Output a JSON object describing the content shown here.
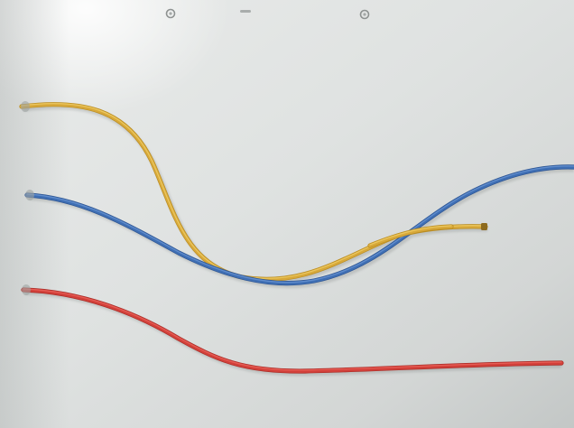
{
  "scene": {
    "subject": "three-wires-on-white-panel",
    "colors": {
      "panel_light": "#e6e8e7",
      "panel_mid": "#d4d7d6",
      "panel_dark": "#b8bcbb",
      "yellow_wire": "#d8a93a",
      "yellow_wire_highlight": "#f0cf6a",
      "blue_wire": "#3f6fb4",
      "blue_wire_highlight": "#6f98d6",
      "red_wire": "#d2403a",
      "red_wire_highlight": "#ef6b63",
      "screw": "#8e9291"
    },
    "wires": [
      {
        "name": "yellow-wire",
        "color_key": "yellow_wire"
      },
      {
        "name": "blue-wire",
        "color_key": "blue_wire"
      },
      {
        "name": "red-wire",
        "color_key": "red_wire"
      }
    ]
  }
}
